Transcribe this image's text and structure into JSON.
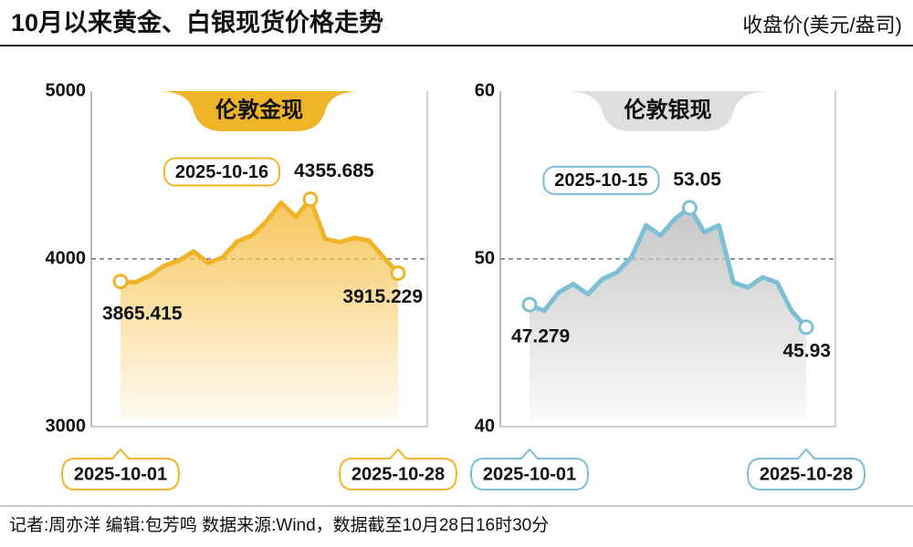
{
  "title": "10月以来黄金、白银现货价格走势",
  "unit": "收盘价(美元/盎司)",
  "footer": "记者:周亦洋  编辑:包芳鸣  数据来源:Wind，数据截至10月28日16时30分",
  "chart_data": [
    {
      "type": "area",
      "title": "伦敦金现",
      "color": "#f0b429",
      "fill_color": "#f6c453",
      "tab_color": "#f0b429",
      "categories": [
        "2025-10-01",
        null,
        null,
        null,
        null,
        null,
        null,
        null,
        null,
        null,
        null,
        null,
        null,
        "2025-10-16",
        null,
        null,
        null,
        null,
        null,
        "2025-10-28"
      ],
      "values": [
        3865.415,
        3860,
        3900,
        3960,
        3990,
        4045,
        3975,
        4010,
        4105,
        4140,
        4225,
        4335,
        4250,
        4355.685,
        4120,
        4100,
        4125,
        4110,
        4010,
        3915.229
      ],
      "value_labels": [
        "3865.415",
        null,
        null,
        null,
        null,
        null,
        null,
        null,
        null,
        null,
        null,
        null,
        null,
        "4355.685",
        null,
        null,
        null,
        null,
        null,
        "3915.229"
      ],
      "ylim": [
        3000,
        5000
      ],
      "yticks": [
        3000,
        4000,
        5000
      ],
      "reference_line": 4000
    },
    {
      "type": "area",
      "title": "伦敦银现",
      "color": "#7dbfd4",
      "fill_color": "#c4c4c4",
      "tab_color": "#dedede",
      "categories": [
        "2025-10-01",
        null,
        null,
        null,
        null,
        null,
        null,
        null,
        null,
        null,
        null,
        "2025-10-15",
        null,
        null,
        null,
        null,
        null,
        null,
        null,
        "2025-10-28"
      ],
      "values": [
        47.279,
        46.9,
        48.0,
        48.5,
        47.9,
        48.8,
        49.2,
        50.1,
        52.0,
        51.4,
        52.4,
        53.05,
        51.6,
        52.0,
        48.6,
        48.3,
        48.9,
        48.6,
        46.9,
        45.93
      ],
      "value_labels": [
        "47.279",
        null,
        null,
        null,
        null,
        null,
        null,
        null,
        null,
        null,
        null,
        "53.05",
        null,
        null,
        null,
        null,
        null,
        null,
        null,
        "45.93"
      ],
      "ylim": [
        40,
        60
      ],
      "yticks": [
        40,
        50,
        60
      ],
      "reference_line": 50
    }
  ]
}
